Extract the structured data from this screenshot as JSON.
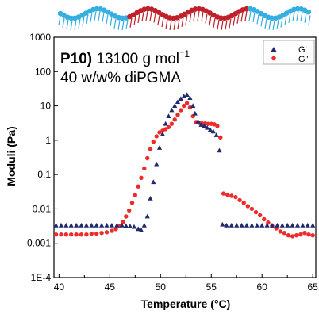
{
  "chart_data": {
    "type": "scatter",
    "title": "",
    "xlabel": "Temperature (°C)",
    "ylabel": "Moduli (Pa)",
    "x_scale": "linear",
    "y_scale": "log",
    "xlim": [
      39.5,
      65.3
    ],
    "ylim": [
      0.0001,
      1000
    ],
    "x_ticks": [
      "40",
      "45",
      "50",
      "55",
      "60",
      "65"
    ],
    "y_ticks": [
      "1E-4",
      "0.001",
      "0.01",
      "0.1",
      "1",
      "10",
      "100",
      "1000"
    ],
    "grid": false,
    "legend_position": "top-right",
    "annotation": {
      "bold": "P10)",
      "text": " 13100 g mol",
      "superscript": "⁻1",
      "line2": "40 w/w% diPGMA"
    },
    "colors": {
      "G_prime": "#1f2a6e",
      "G_double_prime": "#ee2b2b",
      "block_blue": "#35aee0",
      "block_red": "#c0202a"
    },
    "series": [
      {
        "name": "G′",
        "marker": "triangle",
        "color": "#1f2a6e",
        "points": [
          [
            39.7,
            0.0033
          ],
          [
            40.2,
            0.0033
          ],
          [
            40.7,
            0.0033
          ],
          [
            41.2,
            0.0033
          ],
          [
            41.7,
            0.0033
          ],
          [
            42.2,
            0.0033
          ],
          [
            42.7,
            0.0033
          ],
          [
            43.2,
            0.0033
          ],
          [
            43.7,
            0.0033
          ],
          [
            44.2,
            0.0033
          ],
          [
            44.7,
            0.0033
          ],
          [
            45.2,
            0.0033
          ],
          [
            45.7,
            0.0033
          ],
          [
            46.2,
            0.0033
          ],
          [
            46.6,
            0.0032
          ],
          [
            47.0,
            0.0031
          ],
          [
            47.4,
            0.003
          ],
          [
            47.8,
            0.0026
          ],
          [
            48.1,
            0.0024
          ],
          [
            48.4,
            0.0033
          ],
          [
            48.7,
            0.006
          ],
          [
            49.0,
            0.02
          ],
          [
            49.3,
            0.06
          ],
          [
            49.6,
            0.2
          ],
          [
            49.9,
            0.6
          ],
          [
            50.2,
            1.5
          ],
          [
            50.5,
            3.0
          ],
          [
            50.8,
            5.0
          ],
          [
            51.1,
            7.5
          ],
          [
            51.4,
            10
          ],
          [
            51.7,
            13
          ],
          [
            52.0,
            16
          ],
          [
            52.3,
            19
          ],
          [
            52.6,
            21
          ],
          [
            52.9,
            17
          ],
          [
            53.2,
            10
          ],
          [
            53.4,
            6
          ],
          [
            53.7,
            3.5
          ],
          [
            54.0,
            2.8
          ],
          [
            54.3,
            2.6
          ],
          [
            54.6,
            2.3
          ],
          [
            54.9,
            2.0
          ],
          [
            55.2,
            1.8
          ],
          [
            55.5,
            1.4
          ],
          [
            55.8,
            0.5
          ],
          [
            56.1,
            0.0035
          ],
          [
            56.5,
            0.0033
          ],
          [
            57.0,
            0.0033
          ],
          [
            57.5,
            0.0033
          ],
          [
            58.0,
            0.0033
          ],
          [
            58.5,
            0.0033
          ],
          [
            59.0,
            0.0033
          ],
          [
            59.5,
            0.0033
          ],
          [
            60.0,
            0.0033
          ],
          [
            60.5,
            0.0033
          ],
          [
            61.0,
            0.0033
          ],
          [
            61.5,
            0.0033
          ],
          [
            62.0,
            0.0033
          ],
          [
            62.5,
            0.0033
          ],
          [
            63.0,
            0.0033
          ],
          [
            63.5,
            0.0033
          ],
          [
            64.0,
            0.0033
          ],
          [
            64.5,
            0.0033
          ],
          [
            65.0,
            0.0033
          ]
        ]
      },
      {
        "name": "G″",
        "marker": "circle",
        "color": "#ee2b2b",
        "points": [
          [
            39.7,
            0.0018
          ],
          [
            40.2,
            0.0018
          ],
          [
            40.7,
            0.0018
          ],
          [
            41.2,
            0.0018
          ],
          [
            41.7,
            0.0018
          ],
          [
            42.2,
            0.0018
          ],
          [
            42.7,
            0.0018
          ],
          [
            43.2,
            0.0019
          ],
          [
            43.7,
            0.0019
          ],
          [
            44.2,
            0.002
          ],
          [
            44.7,
            0.0021
          ],
          [
            45.2,
            0.0023
          ],
          [
            45.6,
            0.0026
          ],
          [
            46.0,
            0.0032
          ],
          [
            46.3,
            0.0042
          ],
          [
            46.6,
            0.006
          ],
          [
            46.9,
            0.009
          ],
          [
            47.2,
            0.015
          ],
          [
            47.5,
            0.025
          ],
          [
            47.8,
            0.045
          ],
          [
            48.1,
            0.08
          ],
          [
            48.4,
            0.15
          ],
          [
            48.7,
            0.3
          ],
          [
            49.0,
            0.55
          ],
          [
            49.3,
            0.9
          ],
          [
            49.6,
            1.3
          ],
          [
            49.9,
            1.7
          ],
          [
            50.2,
            1.9
          ],
          [
            50.5,
            2.1
          ],
          [
            50.8,
            2.4
          ],
          [
            51.1,
            3.0
          ],
          [
            51.4,
            4.0
          ],
          [
            51.7,
            5.5
          ],
          [
            52.0,
            7.5
          ],
          [
            52.3,
            10
          ],
          [
            52.6,
            12
          ],
          [
            52.9,
            9
          ],
          [
            53.2,
            5
          ],
          [
            53.5,
            3.4
          ],
          [
            53.8,
            3.2
          ],
          [
            54.1,
            3.1
          ],
          [
            54.4,
            3.1
          ],
          [
            54.7,
            3.0
          ],
          [
            55.0,
            3.0
          ],
          [
            55.3,
            2.9
          ],
          [
            55.6,
            2.6
          ],
          [
            55.9,
            1.2
          ],
          [
            56.2,
            0.028
          ],
          [
            56.6,
            0.026
          ],
          [
            57.0,
            0.024
          ],
          [
            57.4,
            0.022
          ],
          [
            57.8,
            0.018
          ],
          [
            58.2,
            0.015
          ],
          [
            58.6,
            0.012
          ],
          [
            59.0,
            0.01
          ],
          [
            59.4,
            0.008
          ],
          [
            59.8,
            0.0065
          ],
          [
            60.2,
            0.005
          ],
          [
            60.6,
            0.004
          ],
          [
            61.0,
            0.0032
          ],
          [
            61.4,
            0.0027
          ],
          [
            61.8,
            0.0022
          ],
          [
            62.2,
            0.002
          ],
          [
            62.6,
            0.0017
          ],
          [
            63.0,
            0.0016
          ],
          [
            63.4,
            0.0017
          ],
          [
            63.8,
            0.0018
          ],
          [
            64.2,
            0.002
          ],
          [
            64.6,
            0.0018
          ],
          [
            65.0,
            0.0017
          ]
        ]
      }
    ]
  }
}
